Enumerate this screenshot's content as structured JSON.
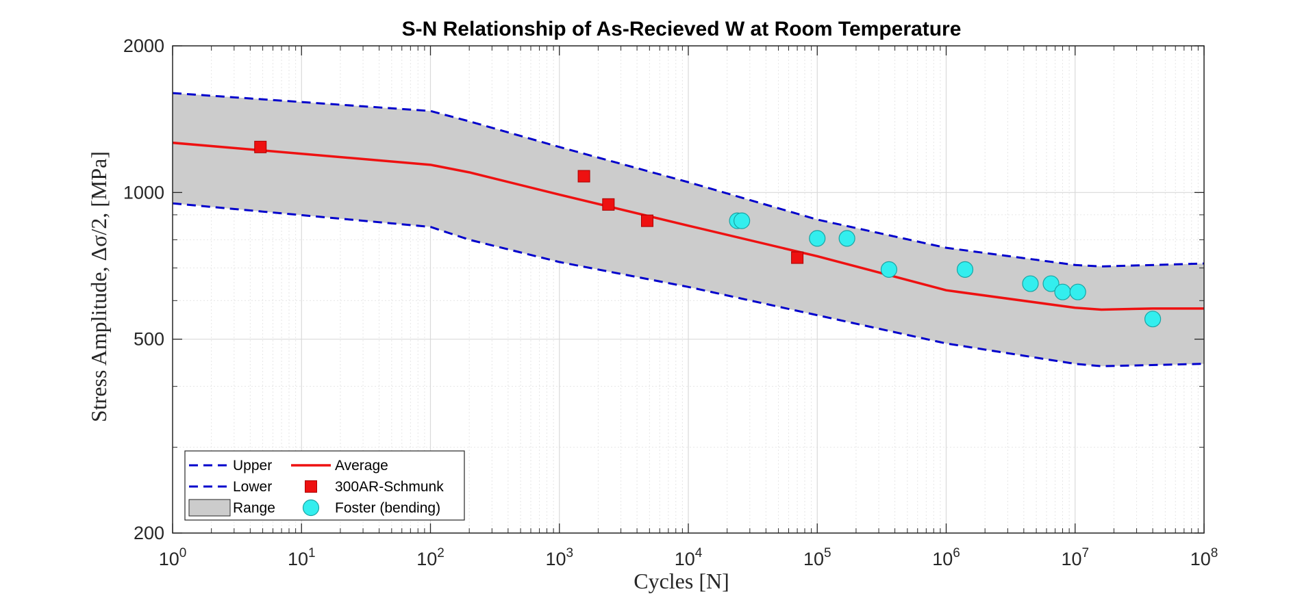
{
  "chart_data": {
    "type": "scatter",
    "title": "S-N Relationship of As-Recieved W at Room Temperature",
    "xlabel": "Cycles [N]",
    "ylabel": "Stress Amplitude, Δσ/2, [MPa]",
    "xscale": "log",
    "yscale": "log",
    "xlim": [
      1,
      100000000
    ],
    "ylim": [
      200,
      2000
    ],
    "x_ticks": [
      {
        "value": 1,
        "base": "10",
        "exp": "0"
      },
      {
        "value": 10,
        "base": "10",
        "exp": "1"
      },
      {
        "value": 100,
        "base": "10",
        "exp": "2"
      },
      {
        "value": 1000,
        "base": "10",
        "exp": "3"
      },
      {
        "value": 10000,
        "base": "10",
        "exp": "4"
      },
      {
        "value": 100000,
        "base": "10",
        "exp": "5"
      },
      {
        "value": 1000000,
        "base": "10",
        "exp": "6"
      },
      {
        "value": 10000000,
        "base": "10",
        "exp": "7"
      },
      {
        "value": 100000000,
        "base": "10",
        "exp": "8"
      }
    ],
    "y_ticks": [
      {
        "value": 200,
        "label": "200"
      },
      {
        "value": 500,
        "label": "500"
      },
      {
        "value": 1000,
        "label": "1000"
      },
      {
        "value": 2000,
        "label": "2000"
      }
    ],
    "grid": true,
    "legend_location": "bottom-left",
    "series": [
      {
        "name": "Upper",
        "kind": "line",
        "style": "dashed",
        "color": "#0000cc",
        "x": [
          1,
          100,
          200,
          1000,
          10000,
          100000,
          1000000,
          10000000,
          16000000,
          100000000
        ],
        "y": [
          1600,
          1470,
          1400,
          1240,
          1050,
          880,
          770,
          710,
          705,
          715
        ]
      },
      {
        "name": "Lower",
        "kind": "line",
        "style": "dashed",
        "color": "#0000cc",
        "x": [
          1,
          100,
          200,
          1000,
          10000,
          100000,
          1000000,
          10000000,
          16000000,
          100000000
        ],
        "y": [
          950,
          850,
          800,
          720,
          640,
          560,
          490,
          445,
          440,
          445
        ]
      },
      {
        "name": "Range",
        "kind": "band",
        "color": "#cccccc",
        "upper_series": "Upper",
        "lower_series": "Lower"
      },
      {
        "name": "Average",
        "kind": "line",
        "style": "solid",
        "color": "#ee1111",
        "x": [
          1,
          100,
          200,
          1000,
          10000,
          100000,
          1000000,
          10000000,
          16000000,
          40000000,
          100000000
        ],
        "y": [
          1265,
          1140,
          1100,
          990,
          855,
          740,
          630,
          580,
          575,
          578,
          578
        ]
      },
      {
        "name": "300AR-Schmunk",
        "kind": "scatter",
        "marker": "square",
        "color": "#ee1111",
        "edge": "#aa0000",
        "x": [
          4.8,
          1550,
          2400,
          4800,
          70000
        ],
        "y": [
          1240,
          1080,
          945,
          875,
          735
        ]
      },
      {
        "name": "Foster (bending)",
        "kind": "scatter",
        "marker": "circle",
        "color": "#33eeee",
        "edge": "#1aa3a3",
        "x": [
          24000,
          26000,
          100000,
          170000,
          360000,
          1400000,
          4500000,
          6500000,
          8000000,
          10500000,
          40000000
        ],
        "y": [
          875,
          875,
          805,
          805,
          695,
          695,
          650,
          650,
          625,
          625,
          550
        ]
      }
    ]
  }
}
